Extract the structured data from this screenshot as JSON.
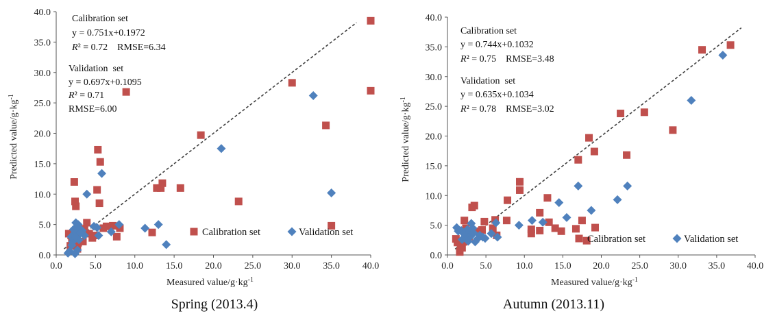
{
  "colors": {
    "calibration": "#c0504d",
    "validation": "#4f81bd",
    "axis": "#555555",
    "fit": "#404040"
  },
  "chart_data": [
    {
      "type": "scatter",
      "caption": "Spring (2013.4)",
      "xlabel": "Measured value/g·kg",
      "ylabel": "Predicted value/g·kg",
      "label_sup": "-1",
      "xlim": [
        0,
        40
      ],
      "ylim": [
        0,
        40
      ],
      "xticks": [
        "0.0",
        "5.0",
        "10.0",
        "15.0",
        "20.0",
        "25.0",
        "30.0",
        "35.0",
        "40.0"
      ],
      "yticks": [
        "0.0",
        "5.0",
        "10.0",
        "15.0",
        "20.0",
        "25.0",
        "30.0",
        "35.0",
        "40.0"
      ],
      "annotations": [
        "Calibration set",
        "y = 0.751x+0.1972",
        "R² = 0.72    RMSE=6.34",
        "Validation  set",
        "y = 0.697x+0.1095",
        "R² = 0.71",
        "RMSE=6.00"
      ],
      "legend": [
        "Calibration set",
        "Validation set"
      ],
      "series": [
        {
          "name": "Calibration set",
          "marker": "square",
          "points": [
            [
              40,
              38.5
            ],
            [
              40,
              27
            ],
            [
              30,
              28.3
            ],
            [
              34.3,
              21.3
            ],
            [
              35,
              4.8
            ],
            [
              23.2,
              8.8
            ],
            [
              18.4,
              19.7
            ],
            [
              15.8,
              11
            ],
            [
              13.5,
              11.8
            ],
            [
              13.3,
              11
            ],
            [
              12.8,
              11
            ],
            [
              12.2,
              3.7
            ],
            [
              8.9,
              26.8
            ],
            [
              8.1,
              4.4
            ],
            [
              7.7,
              3
            ],
            [
              7.2,
              4.8
            ],
            [
              6.4,
              4.7
            ],
            [
              6,
              4.4
            ],
            [
              5.6,
              15.3
            ],
            [
              5.3,
              17.3
            ],
            [
              5.5,
              8.5
            ],
            [
              5.2,
              10.7
            ],
            [
              4.8,
              3.2
            ],
            [
              4.6,
              2.8
            ],
            [
              4.2,
              3.5
            ],
            [
              3.9,
              5.3
            ],
            [
              3.6,
              4.3
            ],
            [
              3.2,
              3.7
            ],
            [
              2.8,
              2
            ],
            [
              2.5,
              8
            ],
            [
              2.4,
              8.8
            ],
            [
              2.3,
              12
            ],
            [
              2.6,
              3
            ],
            [
              2.2,
              2.2
            ],
            [
              2,
              2.6
            ],
            [
              1.9,
              3.2
            ],
            [
              1.6,
              3.5
            ],
            [
              1.8,
              1.5
            ],
            [
              2.7,
              1
            ],
            [
              3.4,
              2.2
            ]
          ]
        },
        {
          "name": "Validation set",
          "marker": "diamond",
          "points": [
            [
              32.7,
              26.2
            ],
            [
              21,
              17.5
            ],
            [
              35,
              10.2
            ],
            [
              14,
              1.7
            ],
            [
              13,
              5
            ],
            [
              11.3,
              4.4
            ],
            [
              8,
              5
            ],
            [
              7,
              3.8
            ],
            [
              5.8,
              13.4
            ],
            [
              5.4,
              3.2
            ],
            [
              5.2,
              4.5
            ],
            [
              4.8,
              4.7
            ],
            [
              3.9,
              10
            ],
            [
              3.6,
              3.2
            ],
            [
              3.3,
              4
            ],
            [
              3,
              4.3
            ],
            [
              2.8,
              5
            ],
            [
              2.6,
              4.3
            ],
            [
              2.5,
              5.3
            ],
            [
              2.4,
              3.8
            ],
            [
              2.3,
              3.3
            ],
            [
              2.2,
              2.6
            ],
            [
              2.1,
              2.2
            ],
            [
              2,
              1.6
            ],
            [
              2.7,
              0.8
            ],
            [
              1.9,
              3
            ],
            [
              1.7,
              0.6
            ],
            [
              1.5,
              0.3
            ],
            [
              2.4,
              0.2
            ],
            [
              2.6,
              4.6
            ],
            [
              3.1,
              3.6
            ],
            [
              2.9,
              2.5
            ],
            [
              2.5,
              2.9
            ],
            [
              2.2,
              4.2
            ]
          ]
        }
      ]
    },
    {
      "type": "scatter",
      "caption": "Autumn (2013.11)",
      "xlabel": "Measured value/g·kg",
      "ylabel": "Predicted value/g·kg",
      "label_sup": "-1",
      "xlim": [
        0,
        40
      ],
      "ylim": [
        0,
        40
      ],
      "xticks": [
        "0.0",
        "5.0",
        "10.0",
        "15.0",
        "20.0",
        "25.0",
        "30.0",
        "35.0",
        "40.0"
      ],
      "yticks": [
        "0.0",
        "5.0",
        "10.0",
        "15.0",
        "20.0",
        "25.0",
        "30.0",
        "35.0",
        "40.0"
      ],
      "annotations": [
        "Calibration set",
        "y = 0.744x+0.1032",
        "R² = 0.75    RMSE=3.48",
        "Validation  set",
        "y = 0.635x+0.1034",
        "R² = 0.78    RMSE=3.02"
      ],
      "legend": [
        "Calibration set",
        "Validation set"
      ],
      "series": [
        {
          "name": "Calibration set",
          "marker": "square",
          "points": [
            [
              36.8,
              35.3
            ],
            [
              33.1,
              34.5
            ],
            [
              29.3,
              21
            ],
            [
              25.6,
              24
            ],
            [
              23.3,
              16.8
            ],
            [
              22.5,
              23.8
            ],
            [
              19.1,
              17.4
            ],
            [
              18.4,
              19.7
            ],
            [
              19.2,
              4.6
            ],
            [
              18.1,
              2.4
            ],
            [
              17,
              16
            ],
            [
              17.5,
              5.8
            ],
            [
              16.7,
              4.4
            ],
            [
              14.8,
              4
            ],
            [
              14,
              4.5
            ],
            [
              13,
              9.6
            ],
            [
              13.2,
              5.5
            ],
            [
              12,
              7.1
            ],
            [
              12,
              4.1
            ],
            [
              10.9,
              4.3
            ],
            [
              10.9,
              3.6
            ],
            [
              9.4,
              12.3
            ],
            [
              9.4,
              10.9
            ],
            [
              7.8,
              9.2
            ],
            [
              7.7,
              5.8
            ],
            [
              6.4,
              3.3
            ],
            [
              6.2,
              5.9
            ],
            [
              5.9,
              4.5
            ],
            [
              4.8,
              5.6
            ],
            [
              4.5,
              4.2
            ],
            [
              3.9,
              4
            ],
            [
              3.5,
              8.3
            ],
            [
              3.2,
              8
            ],
            [
              2.8,
              3.1
            ],
            [
              2.4,
              4.5
            ],
            [
              2.2,
              5.8
            ],
            [
              2.1,
              2.2
            ],
            [
              1.9,
              1.2
            ],
            [
              1.7,
              1.4
            ],
            [
              1.6,
              0.5
            ],
            [
              1.3,
              2.1
            ],
            [
              1.1,
              2.7
            ]
          ]
        },
        {
          "name": "Validation set",
          "marker": "diamond",
          "points": [
            [
              35.8,
              33.6
            ],
            [
              31.7,
              26
            ],
            [
              23.4,
              11.6
            ],
            [
              22.1,
              9.3
            ],
            [
              18.7,
              7.5
            ],
            [
              17,
              11.6
            ],
            [
              15.5,
              6.3
            ],
            [
              14.5,
              8.8
            ],
            [
              12.4,
              5.5
            ],
            [
              11,
              5.8
            ],
            [
              9.3,
              5
            ],
            [
              6.5,
              3
            ],
            [
              6.3,
              5.4
            ],
            [
              5.7,
              3.6
            ],
            [
              4.9,
              2.8
            ],
            [
              4.6,
              3
            ],
            [
              4.2,
              3.3
            ],
            [
              3.9,
              2.7
            ],
            [
              3.6,
              2.2
            ],
            [
              3.3,
              4.5
            ],
            [
              3.1,
              5.3
            ],
            [
              3,
              3.1
            ],
            [
              2.8,
              3.8
            ],
            [
              2.6,
              4.3
            ],
            [
              2.5,
              3.6
            ],
            [
              2.4,
              3.9
            ],
            [
              2.3,
              2.9
            ],
            [
              2.1,
              3.6
            ],
            [
              1.9,
              2.6
            ],
            [
              1.8,
              4.1
            ],
            [
              1.4,
              4
            ],
            [
              1.2,
              4.6
            ],
            [
              2.7,
              2.3
            ],
            [
              3.4,
              3.7
            ]
          ]
        }
      ]
    }
  ]
}
